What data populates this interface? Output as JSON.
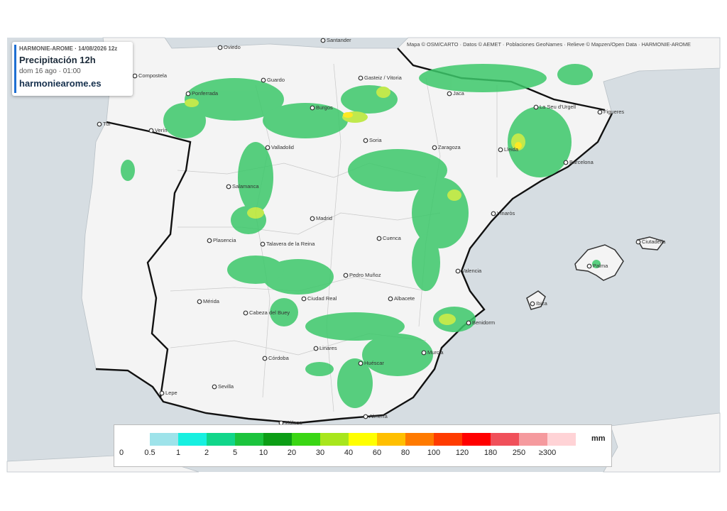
{
  "header": {
    "source": "HARMONIE-AROME · 14/08/2026 12z",
    "title": "Precipitación 12h",
    "datetime": "dom 16 ago · 01:00",
    "website": "harmoniearome.es"
  },
  "attribution": "Mapa © OSM/CARTO · Datos © AEMET · Poblaciones GeoNames · Relieve © Mapzen/Open Data · HARMONIE-AROME",
  "cities": [
    "Oviedo",
    "Santander",
    "Gasteiz / Vitoria",
    "Compostela",
    "Guardo",
    "Ponferrada",
    "Burgos",
    "Jaca",
    "La Seu d'Urgell",
    "Figueres",
    "Tui",
    "Verín",
    "Valladolid",
    "Soria",
    "Zaragoza",
    "Lleida",
    "Barcelona",
    "Salamanca",
    "Madrid",
    "Vinaròs",
    "Plasencia",
    "Talavera de la Reina",
    "Cuenca",
    "Ciutadella",
    "Palma",
    "Valencia",
    "Pedro Muñoz",
    "Mérida",
    "Ciudad Real",
    "Albacete",
    "Ibiza",
    "Cabeza del Buey",
    "Benidorm",
    "Linares",
    "Murcia",
    "Córdoba",
    "Huéscar",
    "Sevilla",
    "Lepe",
    "Almería",
    "Málaga"
  ],
  "legend": {
    "unit": "mm",
    "items": [
      {
        "label": "0",
        "color": "#ffffff"
      },
      {
        "label": "0.5",
        "color": "#9ee3ea"
      },
      {
        "label": "1",
        "color": "#17f0e0"
      },
      {
        "label": "2",
        "color": "#11d68a"
      },
      {
        "label": "5",
        "color": "#1bc43d"
      },
      {
        "label": "10",
        "color": "#0c9e16"
      },
      {
        "label": "20",
        "color": "#3ad614"
      },
      {
        "label": "30",
        "color": "#a8e61c"
      },
      {
        "label": "40",
        "color": "#ffff00"
      },
      {
        "label": "60",
        "color": "#ffbf00"
      },
      {
        "label": "80",
        "color": "#ff7a00"
      },
      {
        "label": "100",
        "color": "#ff3b00"
      },
      {
        "label": "120",
        "color": "#ff0000"
      },
      {
        "label": "180",
        "color": "#f0505a"
      },
      {
        "label": "250",
        "color": "#f59a9e"
      },
      {
        "label": "≥300",
        "color": "#ffd3d6"
      }
    ]
  }
}
